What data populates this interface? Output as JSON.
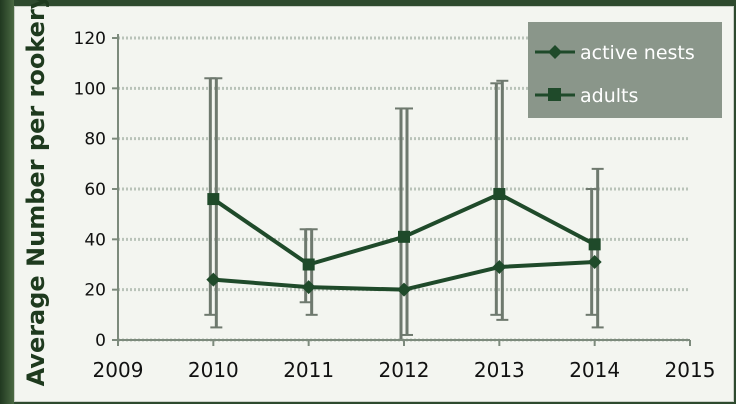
{
  "chart_data": {
    "type": "line",
    "title": "",
    "xlabel": "",
    "ylabel": "Average Number per rookery",
    "xlim": [
      2009,
      2015
    ],
    "ylim": [
      0,
      120
    ],
    "x_ticks": [
      "2009",
      "2010",
      "2011",
      "2012",
      "2013",
      "2014",
      "2015"
    ],
    "y_ticks": [
      "0",
      "20",
      "40",
      "60",
      "80",
      "100",
      "120"
    ],
    "grid": true,
    "legend_position": "top-right",
    "series": [
      {
        "name": "active nests",
        "marker": "diamond",
        "color": "#1f4a2a",
        "x": [
          2010,
          2011,
          2012,
          2013,
          2014
        ],
        "y": [
          24,
          21,
          20,
          29,
          31
        ],
        "error_low": [
          10,
          15,
          0,
          10,
          10
        ],
        "error_high": [
          104,
          44,
          92,
          102,
          60
        ]
      },
      {
        "name": "adults",
        "marker": "square",
        "color": "#1f4a2a",
        "x": [
          2010,
          2011,
          2012,
          2013,
          2014
        ],
        "y": [
          56,
          30,
          41,
          58,
          38
        ],
        "error_low": [
          5,
          10,
          2,
          8,
          5
        ],
        "error_high": [
          104,
          44,
          92,
          103,
          68
        ]
      }
    ],
    "colors": {
      "legend_bg": "#8a968a",
      "axis": "#7c8a7c",
      "grid": "#b9c3b9",
      "error_bar": "#6e796e",
      "line": "#1f4a2a"
    }
  }
}
